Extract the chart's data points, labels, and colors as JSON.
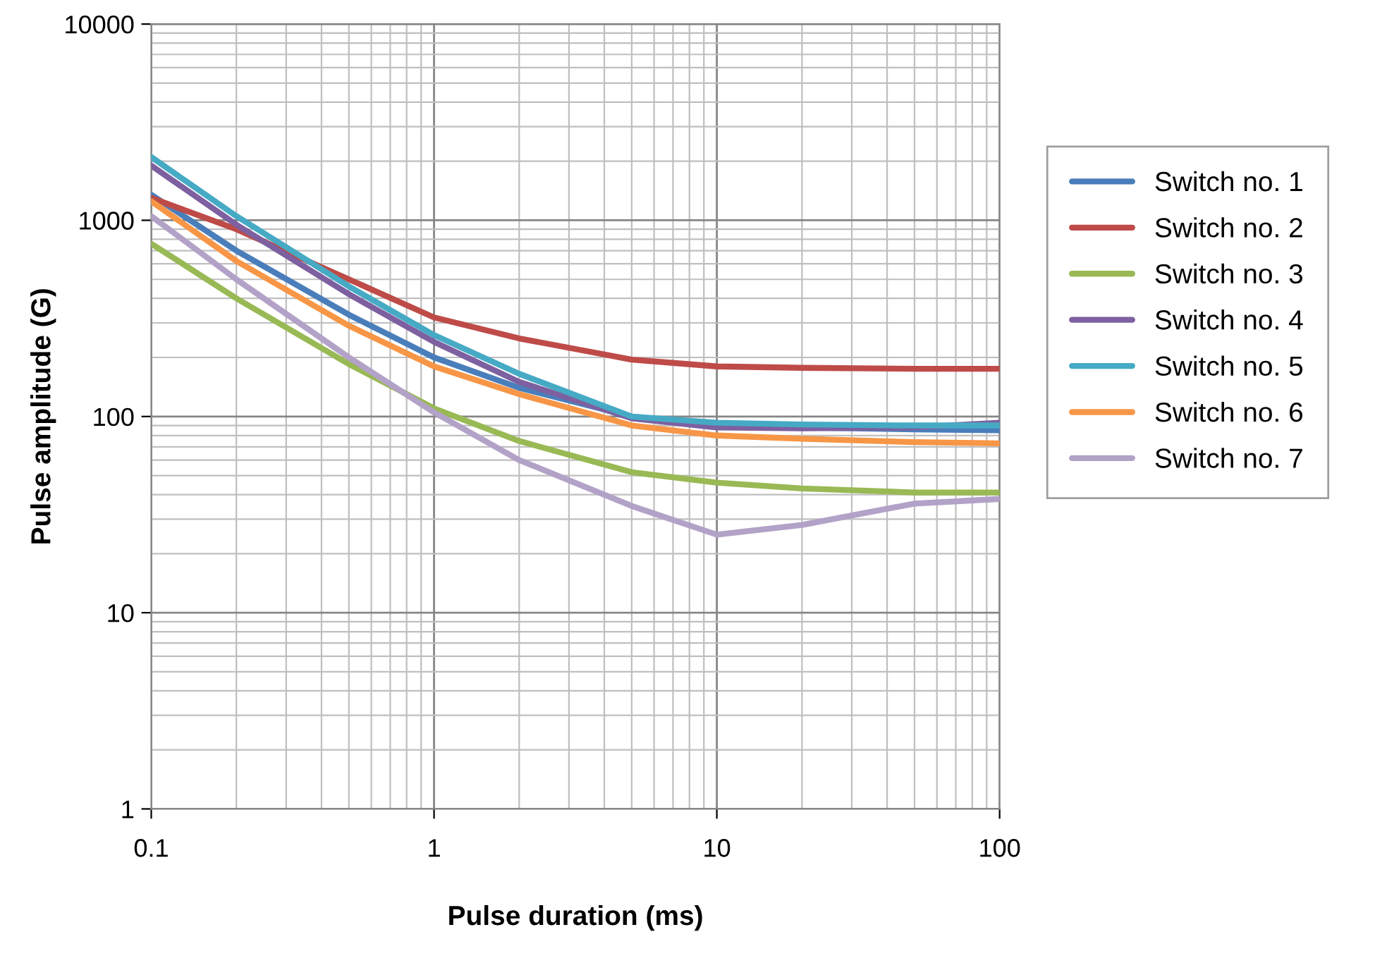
{
  "chart_data": {
    "type": "line",
    "xlabel": "Pulse duration (ms)",
    "ylabel": "Pulse amplitude (G)",
    "log": "xy",
    "grid": true,
    "legend": "right",
    "marker": "none",
    "line_style": "solid",
    "xlim": [
      0.1,
      100
    ],
    "ylim": [
      1,
      10000
    ],
    "xticks": [
      0.1,
      1,
      10,
      100
    ],
    "yticks": [
      1,
      10,
      100,
      1000,
      10000
    ],
    "x": [
      0.1,
      0.2,
      0.5,
      1,
      2,
      5,
      10,
      20,
      50,
      100
    ],
    "series": [
      {
        "name": "Switch no. 1",
        "color": "#4a7ebb",
        "values": [
          1350,
          700,
          330,
          200,
          140,
          100,
          90,
          88,
          86,
          85
        ]
      },
      {
        "name": "Switch no. 2",
        "color": "#be4b48",
        "values": [
          1300,
          900,
          500,
          320,
          250,
          195,
          180,
          177,
          175,
          175
        ]
      },
      {
        "name": "Switch no. 3",
        "color": "#98b954",
        "values": [
          760,
          400,
          185,
          110,
          75,
          52,
          46,
          43,
          41,
          41
        ]
      },
      {
        "name": "Switch no. 4",
        "color": "#7d60a0",
        "values": [
          1900,
          950,
          420,
          240,
          150,
          98,
          88,
          87,
          88,
          93
        ]
      },
      {
        "name": "Switch no. 5",
        "color": "#46aac5",
        "values": [
          2100,
          1050,
          460,
          260,
          165,
          100,
          93,
          91,
          90,
          90
        ]
      },
      {
        "name": "Switch no. 6",
        "color": "#f79646",
        "values": [
          1250,
          620,
          290,
          180,
          130,
          90,
          80,
          77,
          74,
          73
        ]
      },
      {
        "name": "Switch no. 7",
        "color": "#b3a2c7",
        "values": [
          1050,
          500,
          200,
          105,
          60,
          35,
          25,
          28,
          36,
          38
        ]
      }
    ]
  }
}
